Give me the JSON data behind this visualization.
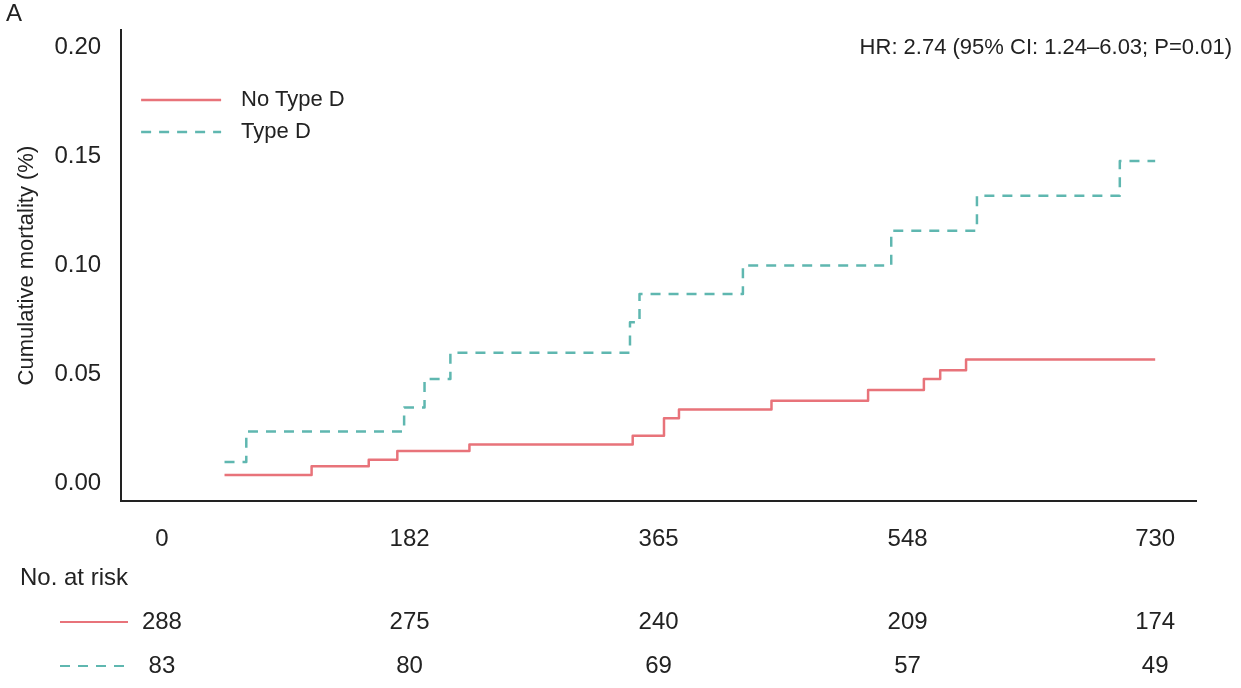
{
  "chart_data": {
    "type": "step",
    "ylabel": "Cumulative mortality (%)",
    "annotations": [
      "A",
      "HR: 2.74 (95% CI: 1.24–6.03; P=0.01)",
      "No. at risk",
      "288",
      "275",
      "240",
      "209",
      "174",
      "83",
      "80",
      "69",
      "57",
      "49"
    ],
    "series": [
      {
        "name": "No Type D",
        "color": "#e8737a",
        "line_style": "solid",
        "x": [
          46,
          110,
          152,
          173,
          226,
          346,
          369,
          380,
          448,
          519,
          560,
          572,
          591,
          730
        ],
        "values": [
          0.004,
          0.008,
          0.011,
          0.015,
          0.018,
          0.022,
          0.03,
          0.034,
          0.038,
          0.043,
          0.048,
          0.052,
          0.057,
          0.057
        ]
      },
      {
        "name": "Type D",
        "color": "#5fb7b0",
        "line_style": "dashed",
        "x": [
          46,
          62,
          178,
          193,
          212,
          344,
          351,
          427,
          536,
          599,
          704,
          730
        ],
        "values": [
          0.01,
          0.024,
          0.035,
          0.048,
          0.06,
          0.074,
          0.087,
          0.1,
          0.116,
          0.132,
          0.148,
          0.148
        ]
      }
    ],
    "xlim": [
      -30,
      760
    ],
    "ylim": [
      -0.008,
      0.208
    ],
    "xticks": [
      0,
      182,
      365,
      548,
      730
    ],
    "yticks": [
      {
        "value": 0,
        "label": "0.00"
      },
      {
        "value": 0.05,
        "label": "0.05"
      },
      {
        "value": 0.1,
        "label": "0.10"
      },
      {
        "value": 0.15,
        "label": "0.15"
      },
      {
        "value": 0.2,
        "label": "0.20"
      }
    ],
    "legend": "top left",
    "grid": false
  }
}
